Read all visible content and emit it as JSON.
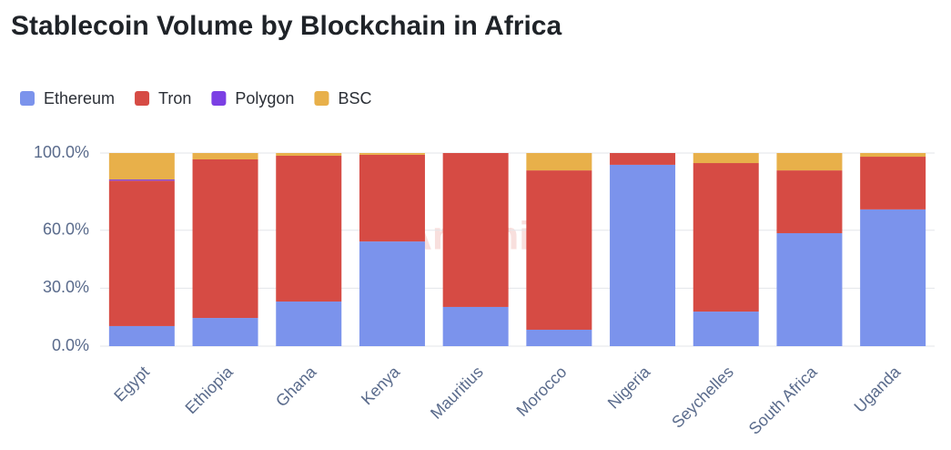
{
  "chart_data": {
    "type": "stacked_bar",
    "title": "Stablecoin Volume by Blockchain in Africa",
    "watermark": "Artemis",
    "categories": [
      "Egypt",
      "Ethiopia",
      "Ghana",
      "Kenya",
      "Mauritius",
      "Morocco",
      "Nigeria",
      "Seychelles",
      "South Africa",
      "Uganda"
    ],
    "series": [
      {
        "name": "Ethereum",
        "color": "#7b93ec",
        "values": [
          10.4,
          14.6,
          23.1,
          54.2,
          20.3,
          8.5,
          93.9,
          17.9,
          58.5,
          70.8
        ]
      },
      {
        "name": "Tron",
        "color": "#d64b44",
        "values": [
          75.3,
          82.1,
          75.5,
          44.9,
          79.7,
          82.5,
          6.1,
          76.9,
          32.5,
          27.3
        ]
      },
      {
        "name": "Polygon",
        "color": "#7b3fe4",
        "values": [
          0.6,
          0,
          0,
          0,
          0,
          0,
          0,
          0,
          0,
          0
        ]
      },
      {
        "name": "BSC",
        "color": "#e8b04a",
        "values": [
          13.7,
          3.3,
          1.4,
          0.9,
          0,
          9.0,
          0,
          5.2,
          9.0,
          1.9
        ]
      }
    ],
    "ylim": [
      0,
      100
    ],
    "yticks": [
      {
        "value": 0,
        "label": "0.0%"
      },
      {
        "value": 30,
        "label": "30.0%"
      },
      {
        "value": 60,
        "label": "60.0%"
      },
      {
        "value": 100,
        "label": "100.0%"
      }
    ],
    "grid": true,
    "legend": "top-left"
  }
}
